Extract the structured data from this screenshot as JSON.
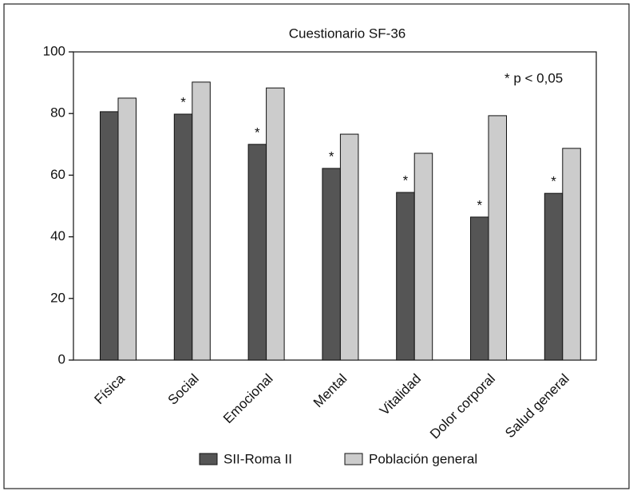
{
  "chart_data": {
    "type": "bar",
    "title": "Cuestionario SF-36",
    "annotation": "* p < 0,05",
    "categories": [
      "Física",
      "Social",
      "Emocional",
      "Mental",
      "Vitalidad",
      "Dolor corporal",
      "Salud general"
    ],
    "series": [
      {
        "name": "SII-Roma II",
        "color": "#555555",
        "values": [
          80.6,
          79.8,
          70,
          62.2,
          54.4,
          46.4,
          54.1
        ],
        "markers": [
          null,
          "*",
          "*",
          "*",
          "*",
          "*",
          "*"
        ]
      },
      {
        "name": "Población general",
        "color": "#cccccc",
        "values": [
          85,
          90.2,
          88.3,
          73.3,
          67.1,
          79.3,
          68.7
        ]
      }
    ],
    "ylim": [
      0,
      100
    ],
    "yticks": [
      0,
      20,
      40,
      60,
      80,
      100
    ]
  }
}
